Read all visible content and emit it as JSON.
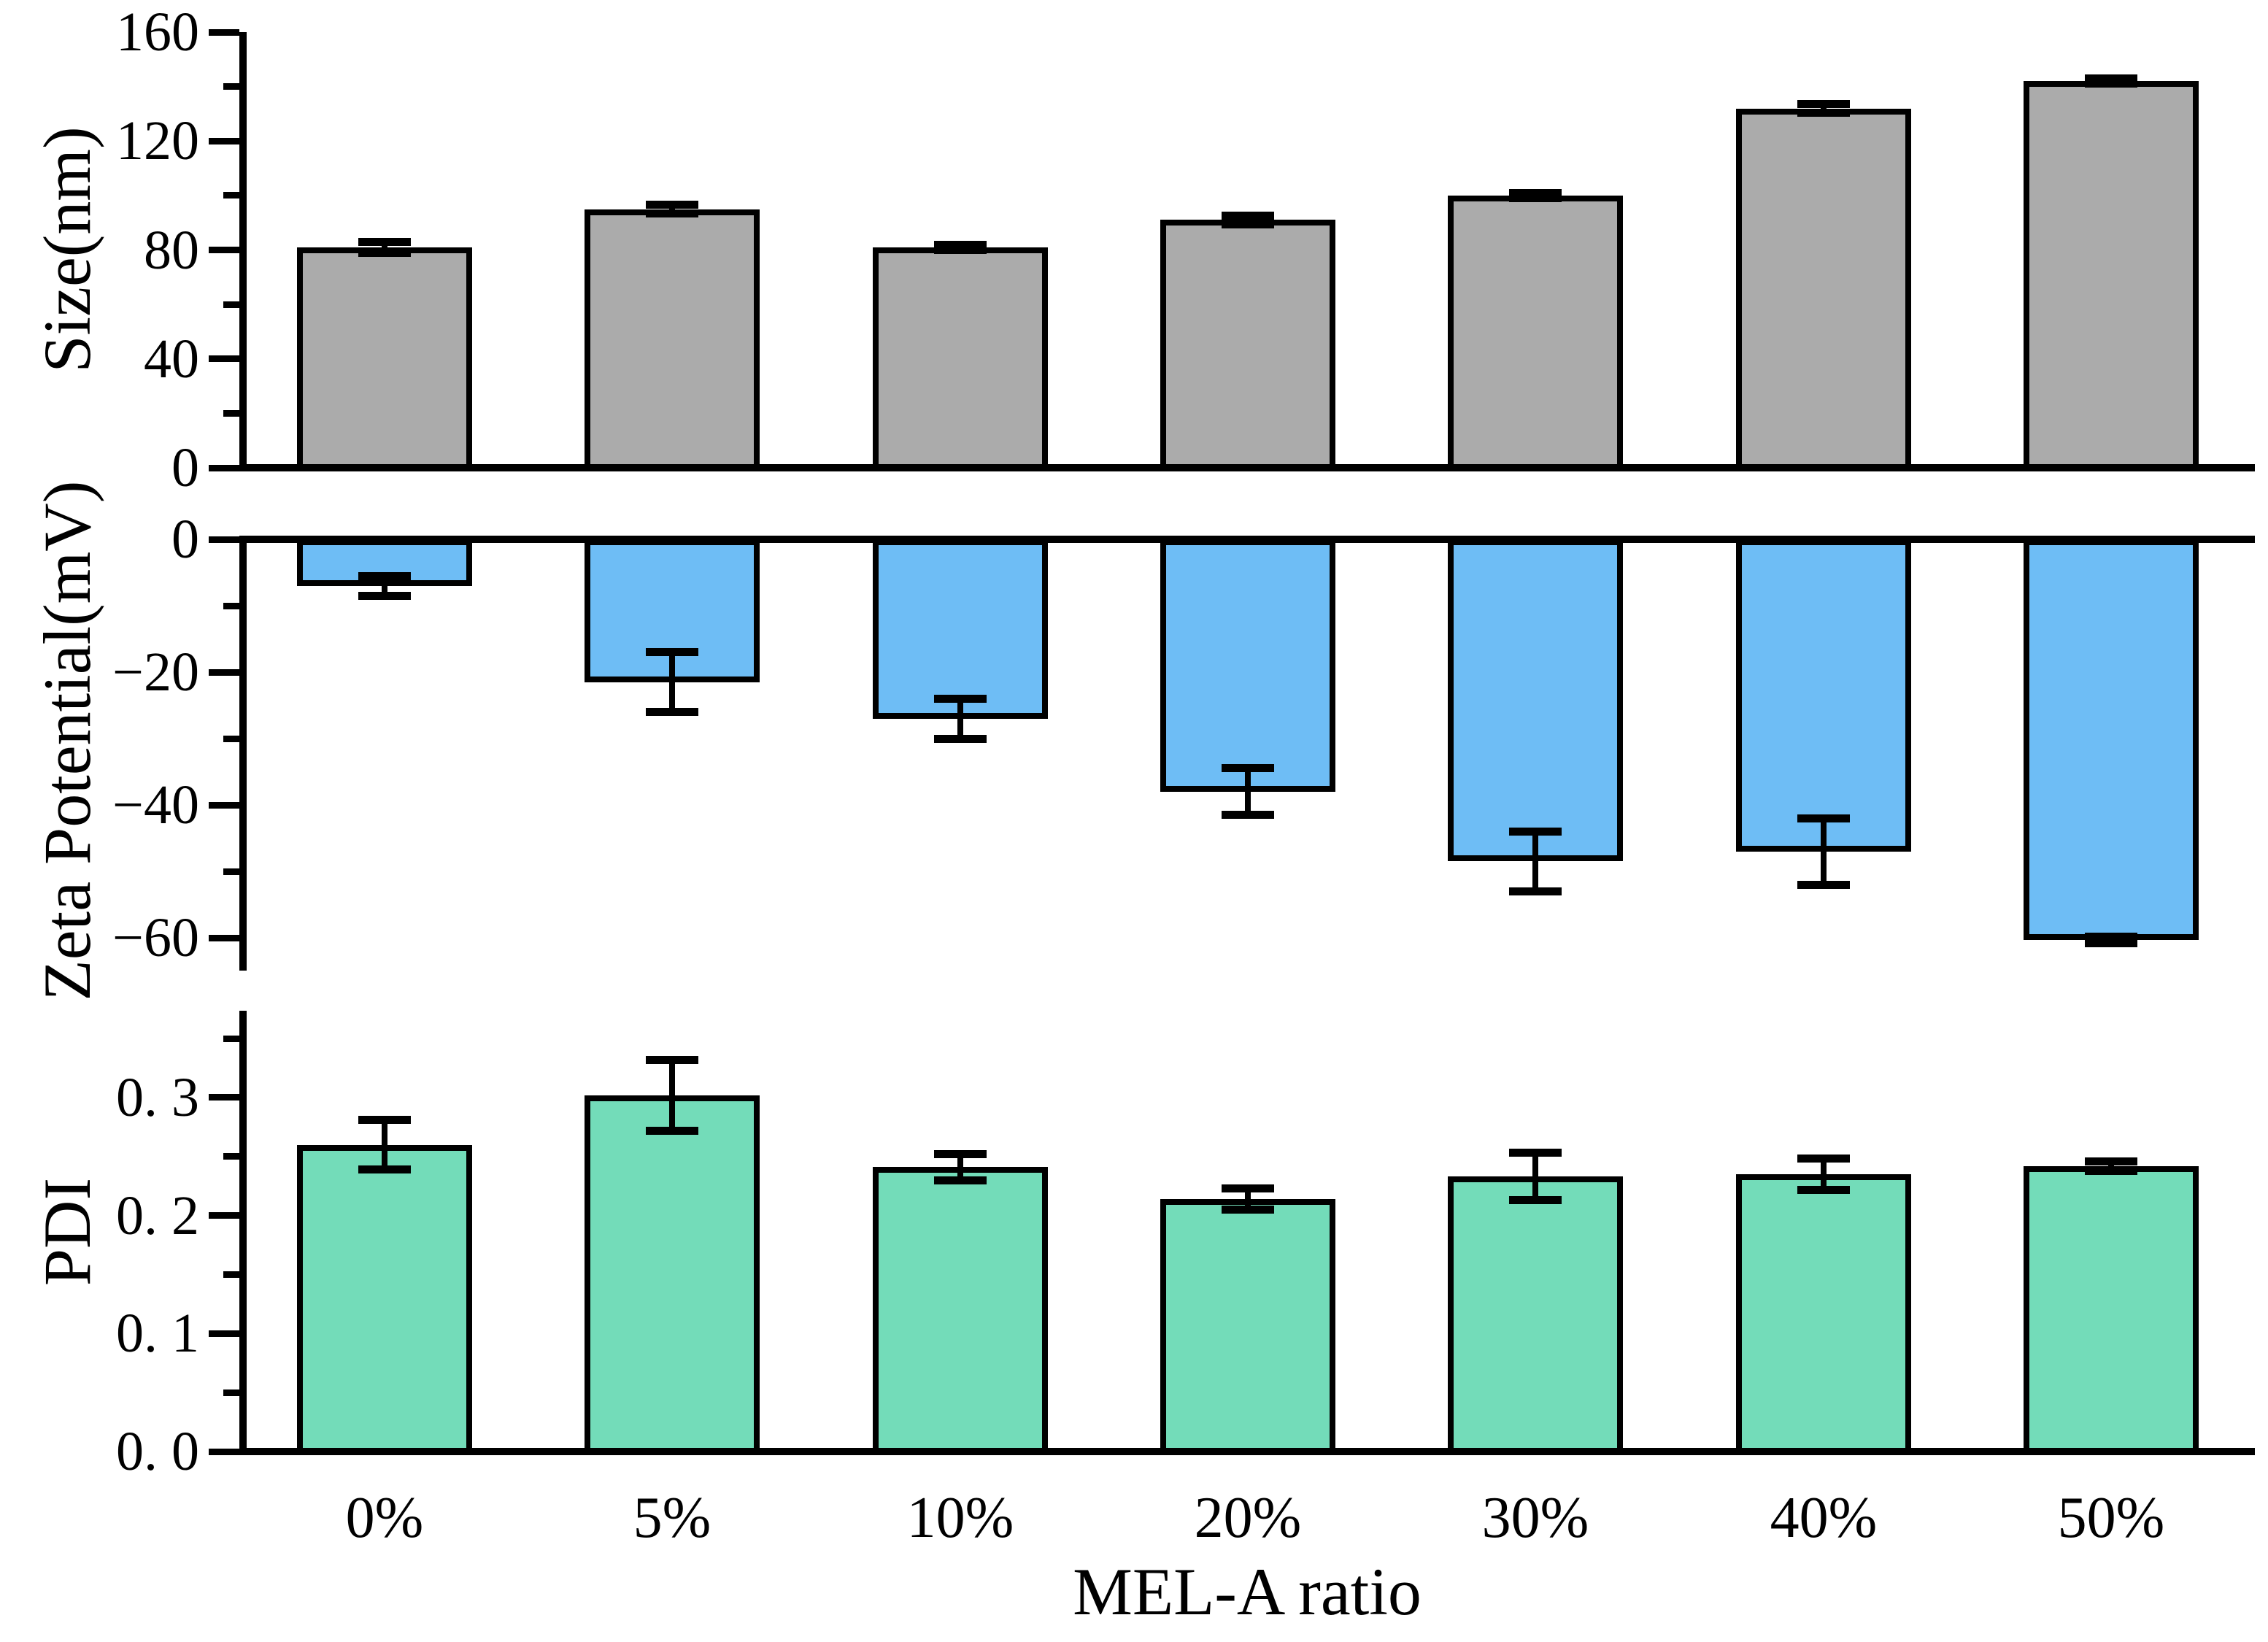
{
  "figure": {
    "background": "#ffffff",
    "xlabel": "MEL-A ratio",
    "categories": [
      "0%",
      "5%",
      "10%",
      "20%",
      "30%",
      "40%",
      "50%"
    ],
    "edge_color": "#000000"
  },
  "chart_data": [
    {
      "id": "size",
      "type": "bar",
      "title": "",
      "ylabel": "Size(nm)",
      "categories": [
        "0%",
        "5%",
        "10%",
        "20%",
        "30%",
        "40%",
        "50%"
      ],
      "values": [
        81,
        95,
        81,
        91,
        100,
        132,
        142
      ],
      "errors": [
        2,
        1.5,
        1,
        1.5,
        1,
        1.5,
        1
      ],
      "bar_color": "#ababab",
      "ylim": [
        0,
        160
      ],
      "yticks_major": [
        0,
        40,
        80,
        120,
        160
      ],
      "yticks_minor": [
        20,
        60,
        100,
        140
      ],
      "ytick_labels": [
        "0",
        "40",
        "80",
        "120",
        "160"
      ],
      "grid": false,
      "legend": "none"
    },
    {
      "id": "zeta",
      "type": "bar",
      "title": "",
      "ylabel": "Zeta Potential(mV)",
      "categories": [
        "0%",
        "5%",
        "10%",
        "20%",
        "30%",
        "40%",
        "50%"
      ],
      "values": [
        -7,
        -21.5,
        -27,
        -38,
        -48.5,
        -47,
        -60.3
      ],
      "errors": [
        1.5,
        4.5,
        3,
        3.5,
        4.5,
        5,
        0.5
      ],
      "bar_color": "#6ebdf5",
      "ylim": [
        0,
        -65
      ],
      "yticks_major": [
        0,
        -20,
        -40,
        -60
      ],
      "yticks_minor": [
        -10,
        -30,
        -50
      ],
      "ytick_labels": [
        "0",
        "−20",
        "−40",
        "−60"
      ],
      "grid": false,
      "legend": "none"
    },
    {
      "id": "pdi",
      "type": "bar",
      "title": "",
      "ylabel": "PDI",
      "categories": [
        "0%",
        "5%",
        "10%",
        "20%",
        "30%",
        "40%",
        "50%"
      ],
      "values": [
        0.26,
        0.302,
        0.241,
        0.214,
        0.233,
        0.235,
        0.242
      ],
      "errors": [
        0.021,
        0.03,
        0.011,
        0.009,
        0.02,
        0.013,
        0.004
      ],
      "bar_color": "#73dcb9",
      "ylim": [
        0,
        0.375
      ],
      "yticks_major": [
        0,
        0.1,
        0.2,
        0.3
      ],
      "yticks_minor": [
        0.05,
        0.15,
        0.25,
        0.35
      ],
      "ytick_labels": [
        "0. 0",
        "0. 1",
        "0. 2",
        "0. 3"
      ],
      "grid": false,
      "legend": "none"
    }
  ]
}
